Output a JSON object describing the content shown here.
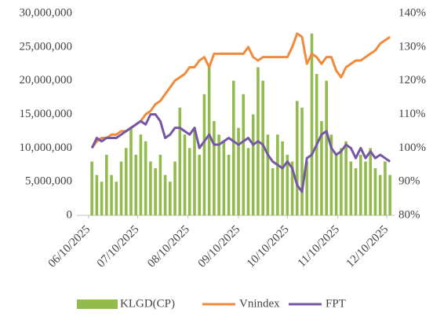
{
  "chart_data": {
    "type": "bar-line",
    "x": [
      "2025-06-12",
      "2025-06-15",
      "2025-06-18",
      "2025-06-21",
      "2025-06-24",
      "2025-06-27",
      "2025-06-30",
      "2025-07-03",
      "2025-07-06",
      "2025-07-09",
      "2025-07-12",
      "2025-07-15",
      "2025-07-18",
      "2025-07-21",
      "2025-07-24",
      "2025-07-27",
      "2025-07-30",
      "2025-08-02",
      "2025-08-05",
      "2025-08-08",
      "2025-08-11",
      "2025-08-14",
      "2025-08-17",
      "2025-08-20",
      "2025-08-23",
      "2025-08-26",
      "2025-08-29",
      "2025-09-01",
      "2025-09-04",
      "2025-09-07",
      "2025-09-10",
      "2025-09-13",
      "2025-09-16",
      "2025-09-19",
      "2025-09-22",
      "2025-09-25",
      "2025-09-28",
      "2025-10-01",
      "2025-10-04",
      "2025-10-07",
      "2025-10-10",
      "2025-10-13",
      "2025-10-16",
      "2025-10-19",
      "2025-10-22",
      "2025-10-25",
      "2025-10-28",
      "2025-10-31",
      "2025-11-03",
      "2025-11-06",
      "2025-11-09",
      "2025-11-12",
      "2025-11-15",
      "2025-11-18",
      "2025-11-21",
      "2025-11-24",
      "2025-11-27",
      "2025-11-30",
      "2025-12-03",
      "2025-12-06",
      "2025-12-09",
      "2025-12-12"
    ],
    "series": [
      {
        "name": "KLGD(CP)",
        "kind": "bar",
        "color": "#92bb4e",
        "values": [
          8000000,
          6000000,
          5000000,
          9000000,
          6000000,
          5000000,
          8000000,
          10000000,
          13000000,
          9000000,
          12000000,
          11000000,
          8000000,
          7000000,
          9000000,
          6000000,
          5000000,
          8000000,
          16000000,
          12000000,
          10000000,
          13000000,
          9000000,
          18000000,
          22000000,
          14000000,
          12000000,
          11000000,
          9000000,
          20000000,
          13000000,
          18000000,
          10000000,
          15000000,
          22000000,
          20000000,
          12000000,
          7000000,
          12000000,
          11000000,
          9000000,
          8000000,
          17000000,
          16000000,
          8000000,
          27000000,
          21000000,
          14000000,
          20000000,
          12000000,
          9000000,
          10000000,
          11000000,
          8000000,
          7000000,
          9000000,
          8000000,
          10000000,
          7000000,
          6000000,
          8000000,
          6000000
        ]
      },
      {
        "name": "Vnindex",
        "kind": "line",
        "axis": "y2",
        "color": "#f08a3c",
        "values": [
          100,
          102,
          103,
          103,
          104,
          104,
          105,
          105,
          106,
          107,
          108,
          110,
          111,
          113,
          114,
          116,
          118,
          120,
          121,
          122,
          124,
          124,
          126,
          127,
          124,
          128,
          128,
          128,
          128,
          128,
          128,
          128,
          130,
          127,
          126,
          127,
          127,
          127,
          127,
          127,
          127,
          130,
          134,
          133,
          125,
          128,
          127,
          125,
          127,
          127,
          123,
          121,
          124,
          125,
          126,
          126,
          127,
          128,
          129,
          131,
          132,
          133
        ]
      },
      {
        "name": "FPT",
        "kind": "line",
        "axis": "y2",
        "color": "#7657a3",
        "values": [
          100,
          103,
          102,
          103,
          103,
          103,
          104,
          105,
          106,
          107,
          108,
          107,
          110,
          110,
          108,
          103,
          104,
          106,
          106,
          105,
          104,
          106,
          100,
          102,
          104,
          101,
          101,
          102,
          103,
          102,
          101,
          102,
          103,
          101,
          102,
          101,
          98,
          96,
          95,
          94,
          96,
          94,
          89,
          87,
          97,
          98,
          101,
          104,
          105,
          100,
          98,
          99,
          101,
          100,
          97,
          100,
          97,
          99,
          97,
          98,
          97,
          96
        ]
      }
    ],
    "xlim": [
      "2025-06-10",
      "2025-12-10"
    ],
    "xticks": [
      {
        "value": "2025-06-10",
        "label": "06/10/2025"
      },
      {
        "value": "2025-07-10",
        "label": "07/10/2025"
      },
      {
        "value": "2025-08-10",
        "label": "08/10/2025"
      },
      {
        "value": "2025-09-10",
        "label": "09/10/2025"
      },
      {
        "value": "2025-10-10",
        "label": "10/10/2025"
      },
      {
        "value": "2025-11-10",
        "label": "11/10/2025"
      },
      {
        "value": "2025-12-10",
        "label": "12/10/2025"
      }
    ],
    "ylim": [
      0,
      30000000
    ],
    "yticks": [
      0,
      {
        "value": 5000000,
        "label": "5,000,000"
      },
      {
        "value": 10000000,
        "label": "10,000,000"
      },
      {
        "value": 15000000,
        "label": "15,000,000"
      },
      {
        "value": 20000000,
        "label": "20,000,000"
      },
      {
        "value": 25000000,
        "label": "25,000,000"
      },
      {
        "value": 30000000,
        "label": "30,000,000"
      }
    ],
    "y2lim": [
      80,
      140
    ],
    "y2ticks": [
      {
        "value": 80,
        "label": "80%"
      },
      {
        "value": 90,
        "label": "90%"
      },
      {
        "value": 100,
        "label": "100%"
      },
      {
        "value": 110,
        "label": "110%"
      },
      {
        "value": 120,
        "label": "120%"
      },
      {
        "value": 130,
        "label": "130%"
      },
      {
        "value": 140,
        "label": "140%"
      }
    ],
    "legend": "bottom"
  }
}
